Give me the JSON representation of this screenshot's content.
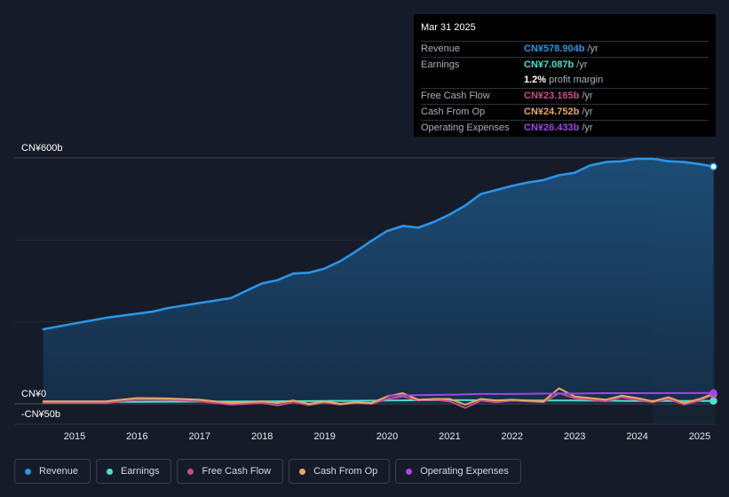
{
  "chart_data": {
    "type": "area",
    "title": "",
    "xlabel": "",
    "ylabel": "",
    "ylim": [
      -50,
      600
    ],
    "y_axis_labels": [
      "CN¥600b",
      "CN¥0",
      "-CN¥50b"
    ],
    "x_tick_labels": [
      "2015",
      "2016",
      "2017",
      "2018",
      "2019",
      "2020",
      "2021",
      "2022",
      "2023",
      "2024",
      "2025"
    ],
    "x_tick_values": [
      2015,
      2016,
      2017,
      2018,
      2019,
      2020,
      2021,
      2022,
      2023,
      2024,
      2025
    ],
    "forecast_start": 2024.25,
    "series": [
      {
        "name": "Revenue",
        "color": "#2b94e6",
        "fill": true,
        "points": [
          [
            2014.5,
            182
          ],
          [
            2015.0,
            196
          ],
          [
            2015.5,
            210
          ],
          [
            2016.0,
            220
          ],
          [
            2016.25,
            225
          ],
          [
            2016.5,
            234
          ],
          [
            2017.0,
            246
          ],
          [
            2017.25,
            252
          ],
          [
            2017.5,
            258
          ],
          [
            2017.75,
            276
          ],
          [
            2018.0,
            294
          ],
          [
            2018.25,
            302
          ],
          [
            2018.5,
            318
          ],
          [
            2018.75,
            320
          ],
          [
            2019.0,
            330
          ],
          [
            2019.25,
            348
          ],
          [
            2019.5,
            372
          ],
          [
            2019.75,
            398
          ],
          [
            2020.0,
            422
          ],
          [
            2020.25,
            434
          ],
          [
            2020.5,
            430
          ],
          [
            2020.75,
            444
          ],
          [
            2021.0,
            462
          ],
          [
            2021.25,
            484
          ],
          [
            2021.5,
            512
          ],
          [
            2021.75,
            522
          ],
          [
            2022.0,
            532
          ],
          [
            2022.25,
            540
          ],
          [
            2022.5,
            546
          ],
          [
            2022.75,
            558
          ],
          [
            2023.0,
            564
          ],
          [
            2023.25,
            582
          ],
          [
            2023.5,
            590
          ],
          [
            2023.75,
            592
          ],
          [
            2024.0,
            598
          ],
          [
            2024.25,
            598
          ],
          [
            2024.5,
            592
          ],
          [
            2024.75,
            590
          ],
          [
            2025.0,
            585
          ],
          [
            2025.22,
            579
          ]
        ]
      },
      {
        "name": "Earnings",
        "color": "#4fe0cb",
        "fill": false,
        "points": [
          [
            2014.5,
            4
          ],
          [
            2016.0,
            5
          ],
          [
            2018.0,
            6
          ],
          [
            2019.0,
            7
          ],
          [
            2020.0,
            8
          ],
          [
            2021.0,
            9
          ],
          [
            2022.0,
            8
          ],
          [
            2023.0,
            8
          ],
          [
            2024.0,
            7
          ],
          [
            2025.22,
            7
          ]
        ]
      },
      {
        "name": "Free Cash Flow",
        "color": "#c84e87",
        "fill": false,
        "points": [
          [
            2014.5,
            2
          ],
          [
            2015.5,
            2
          ],
          [
            2016.0,
            10
          ],
          [
            2016.5,
            10
          ],
          [
            2017.0,
            6
          ],
          [
            2017.5,
            -2
          ],
          [
            2018.0,
            2
          ],
          [
            2018.25,
            -4
          ],
          [
            2018.5,
            4
          ],
          [
            2018.75,
            -3
          ],
          [
            2019.0,
            3
          ],
          [
            2019.25,
            -2
          ],
          [
            2019.5,
            2
          ],
          [
            2019.75,
            0
          ],
          [
            2020.0,
            12
          ],
          [
            2020.25,
            18
          ],
          [
            2020.5,
            8
          ],
          [
            2020.75,
            10
          ],
          [
            2021.0,
            6
          ],
          [
            2021.25,
            -10
          ],
          [
            2021.5,
            8
          ],
          [
            2021.75,
            4
          ],
          [
            2022.0,
            8
          ],
          [
            2022.25,
            6
          ],
          [
            2022.5,
            4
          ],
          [
            2022.75,
            26
          ],
          [
            2023.0,
            14
          ],
          [
            2023.25,
            10
          ],
          [
            2023.5,
            6
          ],
          [
            2023.75,
            16
          ],
          [
            2024.0,
            10
          ],
          [
            2024.25,
            4
          ],
          [
            2024.5,
            12
          ],
          [
            2024.75,
            -2
          ],
          [
            2025.0,
            8
          ],
          [
            2025.22,
            23
          ]
        ]
      },
      {
        "name": "Cash From Op",
        "color": "#e8a963",
        "fill": false,
        "points": [
          [
            2014.5,
            6
          ],
          [
            2015.5,
            6
          ],
          [
            2016.0,
            14
          ],
          [
            2016.5,
            13
          ],
          [
            2017.0,
            10
          ],
          [
            2017.5,
            2
          ],
          [
            2018.0,
            6
          ],
          [
            2018.25,
            2
          ],
          [
            2018.5,
            8
          ],
          [
            2018.75,
            0
          ],
          [
            2019.0,
            6
          ],
          [
            2019.25,
            0
          ],
          [
            2019.5,
            4
          ],
          [
            2019.75,
            2
          ],
          [
            2020.0,
            18
          ],
          [
            2020.25,
            26
          ],
          [
            2020.5,
            10
          ],
          [
            2020.75,
            12
          ],
          [
            2021.0,
            12
          ],
          [
            2021.25,
            -2
          ],
          [
            2021.5,
            12
          ],
          [
            2021.75,
            8
          ],
          [
            2022.0,
            10
          ],
          [
            2022.25,
            8
          ],
          [
            2022.5,
            6
          ],
          [
            2022.75,
            38
          ],
          [
            2023.0,
            18
          ],
          [
            2023.25,
            14
          ],
          [
            2023.5,
            10
          ],
          [
            2023.75,
            20
          ],
          [
            2024.0,
            14
          ],
          [
            2024.25,
            6
          ],
          [
            2024.5,
            16
          ],
          [
            2024.75,
            2
          ],
          [
            2025.0,
            12
          ],
          [
            2025.22,
            24.8
          ]
        ]
      },
      {
        "name": "Operating Expenses",
        "color": "#a046e8",
        "fill": false,
        "points": [
          [
            2020.0,
            20
          ],
          [
            2020.5,
            21
          ],
          [
            2021.0,
            22
          ],
          [
            2021.5,
            24
          ],
          [
            2022.0,
            24
          ],
          [
            2022.5,
            25
          ],
          [
            2023.0,
            25
          ],
          [
            2023.5,
            26
          ],
          [
            2024.0,
            26
          ],
          [
            2025.22,
            26.4
          ]
        ]
      }
    ]
  },
  "tooltip": {
    "date": "Mar 31 2025",
    "rows": [
      {
        "label": "Revenue",
        "value": "CN¥578.904b",
        "unit": "/yr",
        "color": "#2b94e6"
      },
      {
        "label": "Earnings",
        "value": "CN¥7.087b",
        "unit": "/yr",
        "color": "#4fe0cb"
      },
      {
        "label": "",
        "value": "1.2%",
        "unit": "profit margin",
        "color": "#ffffff"
      },
      {
        "label": "Free Cash Flow",
        "value": "CN¥23.165b",
        "unit": "/yr",
        "color": "#c84e87"
      },
      {
        "label": "Cash From Op",
        "value": "CN¥24.752b",
        "unit": "/yr",
        "color": "#e8a963"
      },
      {
        "label": "Operating Expenses",
        "value": "CN¥26.433b",
        "unit": "/yr",
        "color": "#a046e8"
      }
    ]
  },
  "legend": [
    {
      "label": "Revenue",
      "color": "#2b94e6"
    },
    {
      "label": "Earnings",
      "color": "#4fe0cb"
    },
    {
      "label": "Free Cash Flow",
      "color": "#c84e87"
    },
    {
      "label": "Cash From Op",
      "color": "#e8a963"
    },
    {
      "label": "Operating Expenses",
      "color": "#a046e8"
    }
  ]
}
